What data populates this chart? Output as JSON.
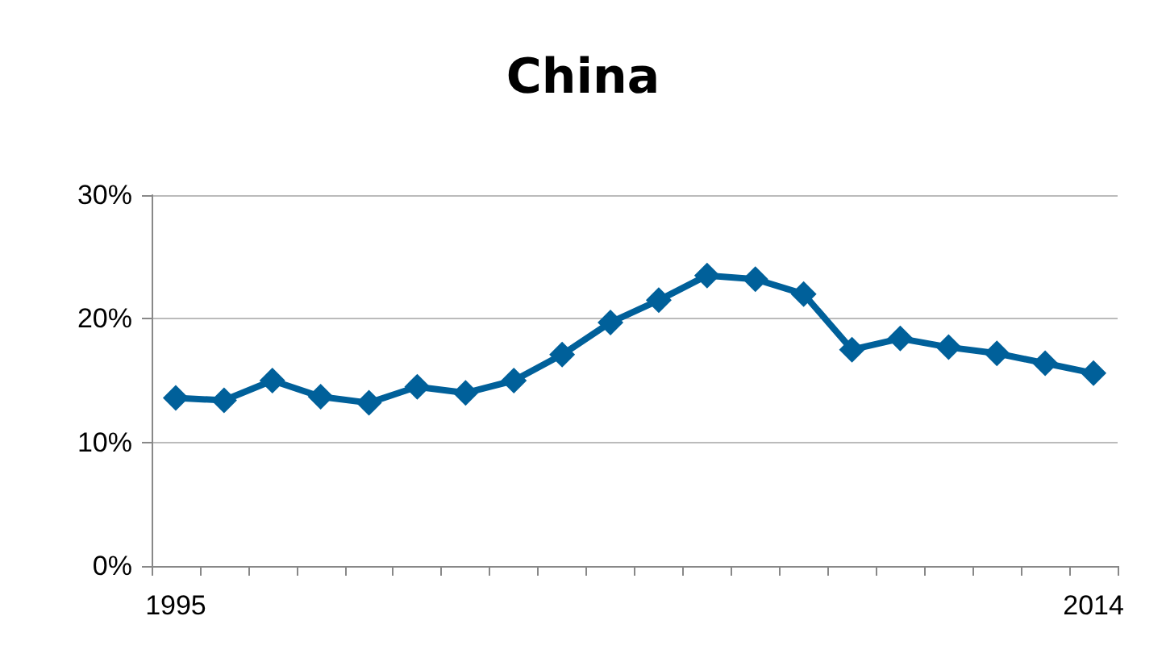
{
  "chart_data": {
    "type": "line",
    "title": "China",
    "categories": [
      "1995",
      null,
      null,
      null,
      null,
      null,
      null,
      null,
      null,
      null,
      null,
      null,
      null,
      null,
      null,
      null,
      null,
      null,
      null,
      "2014"
    ],
    "series": [
      {
        "color": "#00609a",
        "values": [
          13.6,
          13.4,
          15.0,
          13.7,
          13.2,
          14.5,
          14.0,
          15.0,
          17.1,
          19.7,
          21.5,
          23.5,
          23.2,
          22.0,
          17.5,
          18.4,
          17.7,
          17.2,
          16.4,
          15.6
        ]
      }
    ],
    "ylim": [
      0,
      30
    ],
    "yticks": [
      {
        "value": 0,
        "label": "0%"
      },
      {
        "value": 10,
        "label": "10%"
      },
      {
        "value": 20,
        "label": "20%"
      },
      {
        "value": 30,
        "label": "30%"
      }
    ],
    "grid": "y",
    "marker": "diamond",
    "line_style": "solid"
  }
}
